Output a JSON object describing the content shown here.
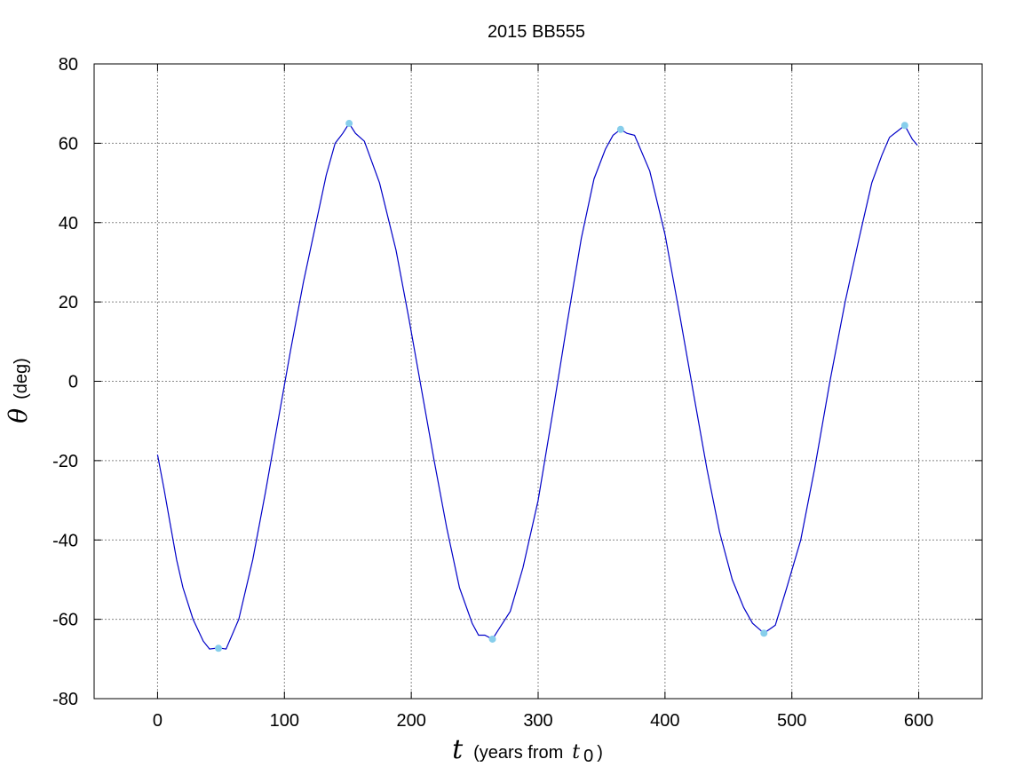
{
  "chart_data": {
    "type": "line",
    "title": "2015 BB555",
    "xlabel": {
      "symbol": "t",
      "text": "(years from",
      "ref_symbol": "t",
      "ref_subscript": "0",
      "close": ")"
    },
    "ylabel": {
      "symbol": "θ",
      "text": "(deg)"
    },
    "xlim": [
      -50,
      650
    ],
    "ylim": [
      -80,
      80
    ],
    "xticks": [
      0,
      100,
      200,
      300,
      400,
      500,
      600
    ],
    "yticks": [
      -80,
      -60,
      -40,
      -20,
      0,
      20,
      40,
      60,
      80
    ],
    "grid": true,
    "colors": {
      "line": "#0000c8",
      "marker": "#87ceeb",
      "grid": "#888888",
      "frame": "#000000"
    },
    "series": [
      {
        "values": [
          [
            0,
            -18.5
          ],
          [
            5,
            -27
          ],
          [
            10,
            -36
          ],
          [
            15,
            -45
          ],
          [
            20,
            -52
          ],
          [
            28,
            -60
          ],
          [
            36,
            -65.5
          ],
          [
            41,
            -67.5
          ],
          [
            48,
            -67.2
          ],
          [
            54,
            -67.5
          ],
          [
            64,
            -60
          ],
          [
            75,
            -45
          ],
          [
            85,
            -28
          ],
          [
            95,
            -10
          ],
          [
            105,
            8
          ],
          [
            115,
            25
          ],
          [
            125,
            40
          ],
          [
            133,
            52
          ],
          [
            140,
            60
          ],
          [
            146,
            62.5
          ],
          [
            151,
            65
          ],
          [
            156,
            62.5
          ],
          [
            163,
            60.5
          ],
          [
            175,
            50
          ],
          [
            188,
            33
          ],
          [
            198,
            16
          ],
          [
            208,
            -2
          ],
          [
            218,
            -20
          ],
          [
            228,
            -37
          ],
          [
            238,
            -52
          ],
          [
            248,
            -61
          ],
          [
            253,
            -64
          ],
          [
            258,
            -64
          ],
          [
            264,
            -65
          ],
          [
            270,
            -62
          ],
          [
            278,
            -58
          ],
          [
            288,
            -47
          ],
          [
            300,
            -30
          ],
          [
            312,
            -7
          ],
          [
            323,
            15
          ],
          [
            334,
            36
          ],
          [
            344,
            51
          ],
          [
            353,
            58.5
          ],
          [
            359,
            62
          ],
          [
            365,
            63.5
          ],
          [
            370,
            62.5
          ],
          [
            376,
            62
          ],
          [
            388,
            53
          ],
          [
            400,
            37
          ],
          [
            412,
            16
          ],
          [
            423,
            -4
          ],
          [
            433,
            -22
          ],
          [
            443,
            -38
          ],
          [
            453,
            -50
          ],
          [
            462,
            -57
          ],
          [
            469,
            -61
          ],
          [
            478,
            -63.5
          ],
          [
            487,
            -61.5
          ],
          [
            496,
            -52
          ],
          [
            507,
            -40
          ],
          [
            518,
            -22
          ],
          [
            530,
            0
          ],
          [
            542,
            20
          ],
          [
            553,
            36
          ],
          [
            563,
            50
          ],
          [
            571,
            57
          ],
          [
            577,
            61.5
          ],
          [
            583,
            63
          ],
          [
            589,
            64.5
          ],
          [
            595,
            61
          ],
          [
            599,
            59.5
          ]
        ]
      }
    ],
    "markers": [
      [
        48,
        -67.3
      ],
      [
        151,
        65
      ],
      [
        264,
        -65
      ],
      [
        365,
        63.5
      ],
      [
        478,
        -63.5
      ],
      [
        589,
        64.5
      ]
    ]
  }
}
